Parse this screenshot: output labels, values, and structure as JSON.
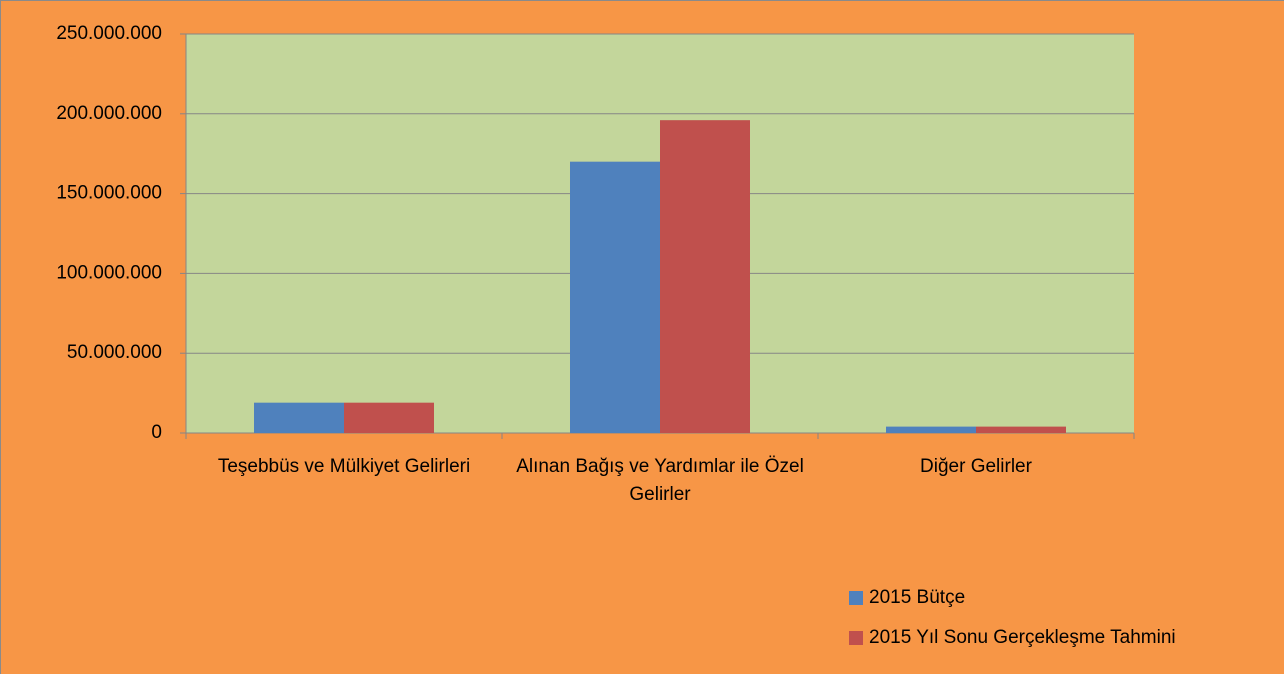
{
  "chart_data": {
    "type": "bar",
    "categories": [
      "Teşebbüs ve Mülkiyet Gelirleri",
      "Alınan Bağış ve Yardımlar ile Özel Gelirler",
      "Diğer Gelirler"
    ],
    "series": [
      {
        "name": "2015 Bütçe",
        "color": "#4f81bd",
        "values": [
          19000000,
          170000000,
          4000000
        ]
      },
      {
        "name": "2015 Yıl Sonu Gerçekleşme Tahmini",
        "color": "#c0504d",
        "values": [
          19000000,
          196000000,
          4000000
        ]
      }
    ],
    "ylim": [
      0,
      250000000
    ],
    "yticks": [
      0,
      {
        "value": 50000000,
        "label": "50.000.000"
      },
      {
        "value": 100000000,
        "label": "100.000.000"
      },
      {
        "value": 150000000,
        "label": "150.000.000"
      },
      {
        "value": 200000000,
        "label": "200.000.000"
      },
      {
        "value": 250000000,
        "label": "250.000.000"
      }
    ],
    "grid": true,
    "legend": "bottom-right"
  }
}
